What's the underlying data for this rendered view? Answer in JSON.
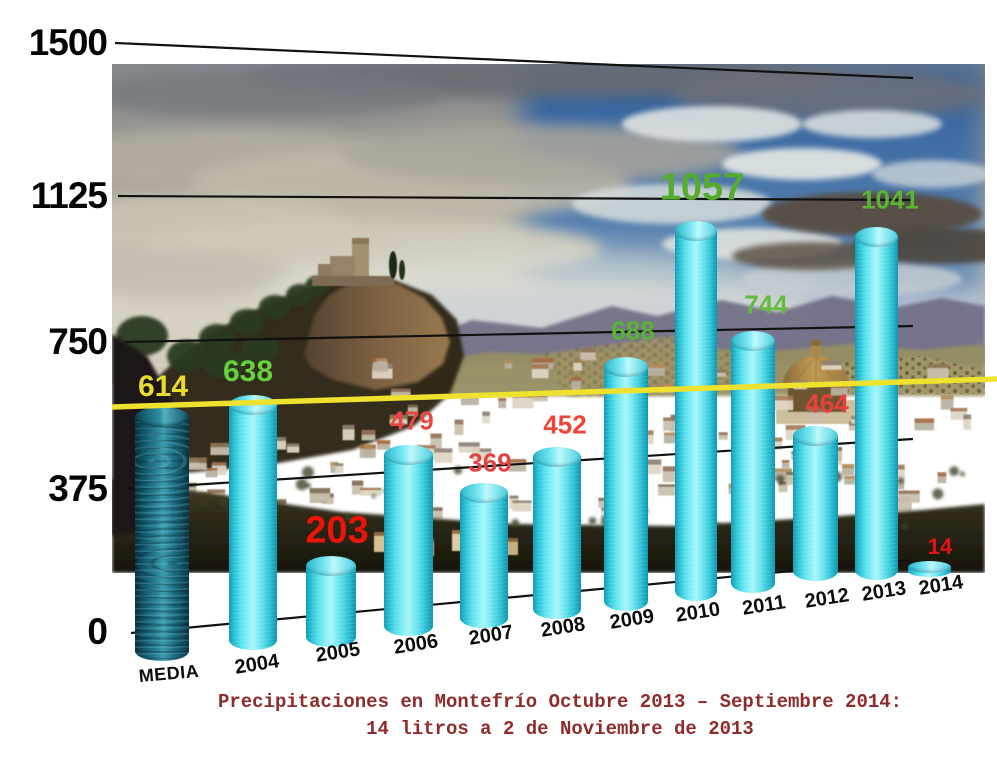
{
  "y_axis": {
    "tick_labels": [
      "1500",
      "1125",
      "750",
      "375",
      "0"
    ]
  },
  "chart_data": {
    "type": "bar",
    "subtype": "3d-cylinder-perspective-over-photo",
    "title": "Precipitaciones en Montefrío Octubre 2013 – Septiembre 2014:",
    "subtitle": "14 litros a 2 de Noviembre de 2013",
    "ylim": [
      0,
      1500
    ],
    "yticks": [
      0,
      375,
      750,
      1125,
      1500
    ],
    "grid": "on",
    "legend": "none",
    "categories": [
      "MEDIA",
      "2004",
      "2005",
      "2006",
      "2007",
      "2008",
      "2009",
      "2010",
      "2011",
      "2012",
      "2013",
      "2014"
    ],
    "values": [
      614,
      638,
      203,
      479,
      369,
      452,
      688,
      1057,
      744,
      464,
      1041,
      14
    ],
    "label_colors": [
      "#e9dc2a",
      "#66d33c",
      "#ea1408",
      "#e84840",
      "#e04343",
      "#ee4438",
      "#58b434",
      "#54ab2c",
      "#62bd3a",
      "#e8423a",
      "#5cb434",
      "#e41410"
    ],
    "label_sizes": [
      30,
      30,
      38,
      26,
      26,
      26,
      26,
      38,
      26,
      26,
      26,
      22
    ],
    "media_line": {
      "value": 614,
      "color": "#eee22e",
      "category": "MEDIA"
    },
    "background_image": "photograph of Montefrío hillside town (castle rock, white village, domed church)"
  },
  "colors": {
    "axis_text": "#040404",
    "grid_line": "#111111",
    "media_line_yellow": "#eee22e",
    "caption_text": "#8e2b2b",
    "bar_cyan": "#55dfeb",
    "bar_media_teal": "#2a8197"
  }
}
